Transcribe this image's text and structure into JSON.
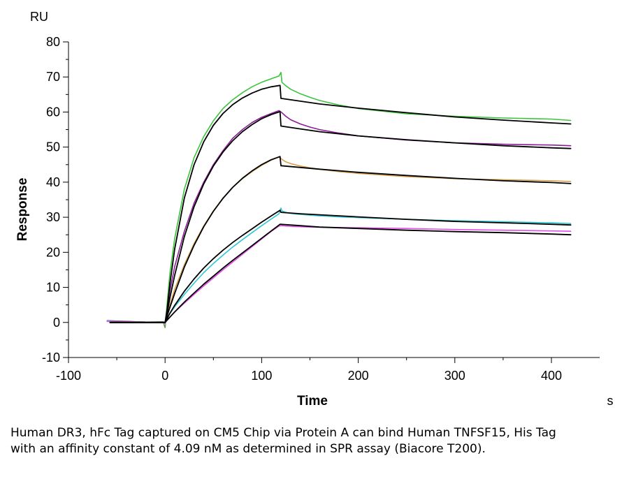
{
  "caption": "Human DR3, hFc Tag captured on CM5 Chip via Protein A can bind Human TNFSF15, His Tag with an affinity constant of 4.09 nM as determined in SPR assay (Biacore T200).",
  "chart_data": {
    "type": "line",
    "title": "",
    "xlabel": "Time",
    "ylabel": "Response",
    "y_unit": "RU",
    "x_unit": "s",
    "xlim": [
      -100,
      450
    ],
    "ylim": [
      -10,
      80
    ],
    "x_ticks": [
      "-100",
      "0",
      "100",
      "200",
      "300",
      "400"
    ],
    "y_ticks": [
      "-10",
      "0",
      "10",
      "20",
      "30",
      "40",
      "50",
      "60",
      "70",
      "80"
    ],
    "grid": false,
    "legend": "none",
    "series": [
      {
        "color": "#3cc43c",
        "points": [
          [
            -60,
            0.5
          ],
          [
            -40,
            0.3
          ],
          [
            -20,
            0.1
          ],
          [
            -2,
            0.2
          ],
          [
            0,
            -1.5
          ],
          [
            1,
            2
          ],
          [
            5,
            14
          ],
          [
            10,
            24
          ],
          [
            20,
            38
          ],
          [
            30,
            47
          ],
          [
            40,
            53
          ],
          [
            50,
            57.5
          ],
          [
            60,
            61
          ],
          [
            70,
            63.5
          ],
          [
            80,
            65.5
          ],
          [
            90,
            67.2
          ],
          [
            100,
            68.5
          ],
          [
            110,
            69.5
          ],
          [
            118,
            70.3
          ],
          [
            120,
            71.3
          ],
          [
            121,
            68.5
          ],
          [
            125,
            67.5
          ],
          [
            130,
            66.5
          ],
          [
            140,
            65.2
          ],
          [
            150,
            64.2
          ],
          [
            160,
            63.3
          ],
          [
            180,
            62
          ],
          [
            200,
            61
          ],
          [
            250,
            59.5
          ],
          [
            300,
            58.8
          ],
          [
            350,
            58.3
          ],
          [
            400,
            58
          ],
          [
            420,
            57.6
          ]
        ]
      },
      {
        "color": "#8b1d96",
        "points": [
          [
            -60,
            0.5
          ],
          [
            -40,
            0.3
          ],
          [
            -20,
            0.1
          ],
          [
            -2,
            0.1
          ],
          [
            0,
            -1
          ],
          [
            1,
            1.5
          ],
          [
            5,
            9
          ],
          [
            10,
            16
          ],
          [
            20,
            26
          ],
          [
            30,
            34
          ],
          [
            40,
            40
          ],
          [
            50,
            45
          ],
          [
            60,
            49
          ],
          [
            70,
            52.5
          ],
          [
            80,
            55
          ],
          [
            90,
            57
          ],
          [
            100,
            58.5
          ],
          [
            110,
            59.6
          ],
          [
            118,
            60.4
          ],
          [
            121,
            59.8
          ],
          [
            125,
            58.8
          ],
          [
            130,
            57.8
          ],
          [
            140,
            56.6
          ],
          [
            150,
            55.7
          ],
          [
            160,
            55
          ],
          [
            180,
            54
          ],
          [
            200,
            53.2
          ],
          [
            250,
            52
          ],
          [
            300,
            51.2
          ],
          [
            350,
            50.8
          ],
          [
            400,
            50.6
          ],
          [
            420,
            50.4
          ]
        ]
      },
      {
        "color": "#d4a24c",
        "points": [
          [
            -60,
            0.4
          ],
          [
            -40,
            0.2
          ],
          [
            -20,
            0.1
          ],
          [
            -2,
            0.1
          ],
          [
            0,
            -0.8
          ],
          [
            1,
            1
          ],
          [
            5,
            5
          ],
          [
            10,
            9.5
          ],
          [
            20,
            16.5
          ],
          [
            30,
            22.5
          ],
          [
            40,
            27.5
          ],
          [
            50,
            31.8
          ],
          [
            60,
            35.5
          ],
          [
            70,
            38.5
          ],
          [
            80,
            41
          ],
          [
            90,
            43
          ],
          [
            100,
            44.8
          ],
          [
            110,
            46.3
          ],
          [
            118,
            47.2
          ],
          [
            121,
            46.5
          ],
          [
            125,
            45.8
          ],
          [
            130,
            45.3
          ],
          [
            140,
            44.6
          ],
          [
            150,
            44.1
          ],
          [
            160,
            43.7
          ],
          [
            180,
            43
          ],
          [
            200,
            42.5
          ],
          [
            250,
            41.6
          ],
          [
            300,
            41
          ],
          [
            350,
            40.7
          ],
          [
            400,
            40.4
          ],
          [
            420,
            40.2
          ]
        ]
      },
      {
        "color": "#2ec7d4",
        "points": [
          [
            -60,
            0.4
          ],
          [
            -40,
            0.2
          ],
          [
            -20,
            0.1
          ],
          [
            -2,
            0.1
          ],
          [
            0,
            -0.5
          ],
          [
            1,
            0.8
          ],
          [
            5,
            2.5
          ],
          [
            10,
            4.5
          ],
          [
            20,
            8
          ],
          [
            30,
            11.2
          ],
          [
            40,
            14.2
          ],
          [
            50,
            16.8
          ],
          [
            60,
            19.2
          ],
          [
            70,
            21.5
          ],
          [
            80,
            23.6
          ],
          [
            90,
            25.6
          ],
          [
            100,
            27.6
          ],
          [
            110,
            29.5
          ],
          [
            118,
            31
          ],
          [
            120,
            32.6
          ],
          [
            121,
            31.8
          ],
          [
            125,
            31.4
          ],
          [
            130,
            31.1
          ],
          [
            140,
            30.8
          ],
          [
            150,
            30.6
          ],
          [
            160,
            30.4
          ],
          [
            180,
            30.1
          ],
          [
            200,
            29.9
          ],
          [
            250,
            29.4
          ],
          [
            300,
            29
          ],
          [
            350,
            28.7
          ],
          [
            400,
            28.4
          ],
          [
            420,
            28.2
          ]
        ]
      },
      {
        "color": "#e34ee8",
        "points": [
          [
            -60,
            0.3
          ],
          [
            -40,
            0.2
          ],
          [
            -20,
            0.1
          ],
          [
            -2,
            0.1
          ],
          [
            0,
            -0.3
          ],
          [
            1,
            0.6
          ],
          [
            5,
            1.5
          ],
          [
            10,
            3
          ],
          [
            20,
            5.5
          ],
          [
            30,
            8
          ],
          [
            40,
            10.4
          ],
          [
            50,
            12.7
          ],
          [
            60,
            15
          ],
          [
            70,
            17.2
          ],
          [
            80,
            19.4
          ],
          [
            90,
            21.6
          ],
          [
            100,
            23.8
          ],
          [
            110,
            26
          ],
          [
            118,
            27.5
          ],
          [
            121,
            27.6
          ],
          [
            125,
            27.5
          ],
          [
            130,
            27.4
          ],
          [
            140,
            27.3
          ],
          [
            150,
            27.2
          ],
          [
            200,
            27
          ],
          [
            250,
            26.8
          ],
          [
            300,
            26.5
          ],
          [
            350,
            26.3
          ],
          [
            400,
            26.1
          ],
          [
            420,
            26
          ]
        ]
      },
      {
        "color": "#000000",
        "points": [
          [
            -57,
            0
          ],
          [
            -2,
            0
          ],
          [
            0,
            0
          ],
          [
            2,
            3.5
          ],
          [
            5,
            11
          ],
          [
            10,
            21
          ],
          [
            20,
            35.5
          ],
          [
            30,
            45
          ],
          [
            40,
            51.5
          ],
          [
            50,
            56.2
          ],
          [
            60,
            59.6
          ],
          [
            70,
            62.1
          ],
          [
            80,
            64
          ],
          [
            90,
            65.4
          ],
          [
            100,
            66.5
          ],
          [
            110,
            67.2
          ],
          [
            119,
            67.6
          ],
          [
            120,
            63.9
          ],
          [
            140,
            63.1
          ],
          [
            160,
            62.3
          ],
          [
            200,
            61.1
          ],
          [
            250,
            59.8
          ],
          [
            300,
            58.6
          ],
          [
            350,
            57.7
          ],
          [
            400,
            56.9
          ],
          [
            420,
            56.6
          ]
        ]
      },
      {
        "color": "#000000",
        "points": [
          [
            -57,
            0
          ],
          [
            -2,
            0
          ],
          [
            0,
            0
          ],
          [
            2,
            2.5
          ],
          [
            5,
            7
          ],
          [
            10,
            13.5
          ],
          [
            20,
            24.5
          ],
          [
            30,
            33
          ],
          [
            40,
            39.5
          ],
          [
            50,
            44.6
          ],
          [
            60,
            48.6
          ],
          [
            70,
            51.8
          ],
          [
            80,
            54.4
          ],
          [
            90,
            56.4
          ],
          [
            100,
            58.1
          ],
          [
            110,
            59.3
          ],
          [
            119,
            60.1
          ],
          [
            120,
            56
          ],
          [
            140,
            55.2
          ],
          [
            160,
            54.4
          ],
          [
            200,
            53.2
          ],
          [
            250,
            52.1
          ],
          [
            300,
            51.2
          ],
          [
            350,
            50.4
          ],
          [
            400,
            49.8
          ],
          [
            420,
            49.6
          ]
        ]
      },
      {
        "color": "#000000",
        "points": [
          [
            -57,
            0
          ],
          [
            -2,
            0
          ],
          [
            0,
            0
          ],
          [
            2,
            1.8
          ],
          [
            5,
            4.3
          ],
          [
            10,
            8.3
          ],
          [
            20,
            15.8
          ],
          [
            30,
            22
          ],
          [
            40,
            27.3
          ],
          [
            50,
            31.7
          ],
          [
            60,
            35.4
          ],
          [
            70,
            38.5
          ],
          [
            80,
            41.1
          ],
          [
            90,
            43.2
          ],
          [
            100,
            45
          ],
          [
            110,
            46.4
          ],
          [
            119,
            47.3
          ],
          [
            120,
            44.7
          ],
          [
            140,
            44.2
          ],
          [
            160,
            43.7
          ],
          [
            200,
            42.8
          ],
          [
            250,
            41.9
          ],
          [
            300,
            41.1
          ],
          [
            350,
            40.4
          ],
          [
            400,
            39.9
          ],
          [
            420,
            39.6
          ]
        ]
      },
      {
        "color": "#000000",
        "points": [
          [
            -57,
            0
          ],
          [
            -2,
            0
          ],
          [
            0,
            0
          ],
          [
            5,
            2.6
          ],
          [
            10,
            4.9
          ],
          [
            20,
            8.9
          ],
          [
            30,
            12.4
          ],
          [
            40,
            15.5
          ],
          [
            50,
            18.2
          ],
          [
            60,
            20.6
          ],
          [
            70,
            22.8
          ],
          [
            80,
            24.8
          ],
          [
            90,
            26.7
          ],
          [
            100,
            28.6
          ],
          [
            110,
            30.4
          ],
          [
            119,
            32
          ],
          [
            120,
            31.4
          ],
          [
            140,
            31
          ],
          [
            160,
            30.7
          ],
          [
            200,
            30.1
          ],
          [
            250,
            29.4
          ],
          [
            300,
            28.8
          ],
          [
            350,
            28.4
          ],
          [
            400,
            28
          ],
          [
            420,
            27.8
          ]
        ]
      },
      {
        "color": "#000000",
        "points": [
          [
            -57,
            0
          ],
          [
            -2,
            0
          ],
          [
            0,
            0
          ],
          [
            5,
            1.5
          ],
          [
            10,
            3
          ],
          [
            20,
            5.8
          ],
          [
            30,
            8.4
          ],
          [
            40,
            10.9
          ],
          [
            50,
            13.2
          ],
          [
            60,
            15.5
          ],
          [
            70,
            17.7
          ],
          [
            80,
            19.8
          ],
          [
            90,
            21.9
          ],
          [
            100,
            24
          ],
          [
            110,
            26.1
          ],
          [
            119,
            28
          ],
          [
            140,
            27.6
          ],
          [
            160,
            27.2
          ],
          [
            200,
            26.8
          ],
          [
            250,
            26.3
          ],
          [
            300,
            25.9
          ],
          [
            350,
            25.6
          ],
          [
            400,
            25.2
          ],
          [
            420,
            25
          ]
        ]
      }
    ]
  }
}
